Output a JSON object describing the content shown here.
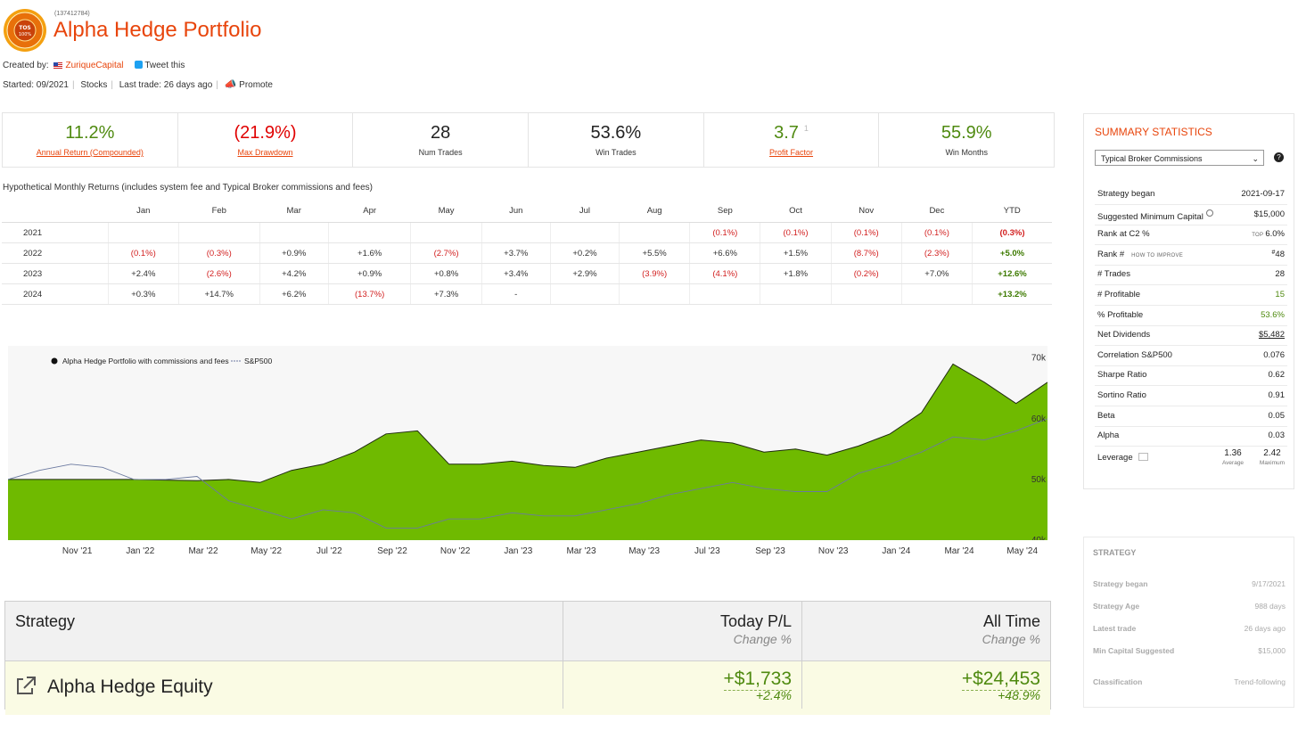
{
  "header": {
    "system_id": "(137412784)",
    "title": "Alpha Hedge Portfolio",
    "badge_text": "TOS 100%",
    "created_by_label": "Created by:",
    "creator": "ZuriqueCapital",
    "tweet": "Tweet this",
    "started": "Started: 09/2021",
    "asset": "Stocks",
    "last_trade": "Last trade: 26 days ago",
    "promote": "Promote"
  },
  "stats": [
    {
      "value": "11.2%",
      "label": "Annual Return (Compounded)"
    },
    {
      "value": "(21.9%)",
      "label": "Max Drawdown"
    },
    {
      "value": "28",
      "label": "Num Trades"
    },
    {
      "value": "53.6%",
      "label": "Win Trades"
    },
    {
      "value": "3.7",
      "superscript": "1",
      "label": "Profit Factor"
    },
    {
      "value": "55.9%",
      "label": "Win Months"
    }
  ],
  "monthly_returns": {
    "caption": "Hypothetical Monthly Returns (includes system fee and Typical Broker commissions and fees)",
    "columns": [
      "",
      "Jan",
      "Feb",
      "Mar",
      "Apr",
      "May",
      "Jun",
      "Jul",
      "Aug",
      "Sep",
      "Oct",
      "Nov",
      "Dec",
      "YTD"
    ],
    "rows": [
      [
        "2021",
        "",
        "",
        "",
        "",
        "",
        "",
        "",
        "",
        "(0.1%)",
        "(0.1%)",
        "(0.1%)",
        "(0.1%)",
        "(0.3%)"
      ],
      [
        "2022",
        "(0.1%)",
        "(0.3%)",
        "+0.9%",
        "+1.6%",
        "(2.7%)",
        "+3.7%",
        "+0.2%",
        "+5.5%",
        "+6.6%",
        "+1.5%",
        "(8.7%)",
        "(2.3%)",
        "+5.0%"
      ],
      [
        "2023",
        "+2.4%",
        "(2.6%)",
        "+4.2%",
        "+0.9%",
        "+0.8%",
        "+3.4%",
        "+2.9%",
        "(3.9%)",
        "(4.1%)",
        "+1.8%",
        "(0.2%)",
        "+7.0%",
        "+12.6%"
      ],
      [
        "2024",
        "+0.3%",
        "+14.7%",
        "+6.2%",
        "(13.7%)",
        "+7.3%",
        "-",
        "",
        "",
        "",
        "",
        "",
        "",
        "+13.2%"
      ]
    ]
  },
  "chart_data": {
    "type": "area",
    "legend": [
      {
        "name": "Alpha Hedge Portfolio with commissions and fees"
      },
      {
        "name": "S&P500"
      }
    ],
    "legend_position": "top-left",
    "x_ticks": [
      "Nov '21",
      "Jan '22",
      "Mar '22",
      "May '22",
      "Jul '22",
      "Sep '22",
      "Nov '22",
      "Jan '23",
      "Mar '23",
      "May '23",
      "Jul '23",
      "Sep '23",
      "Nov '23",
      "Jan '24",
      "Mar '24",
      "May '24"
    ],
    "y_ticks": [
      "70k",
      "60k",
      "50k",
      "40k"
    ],
    "ylim": [
      40000,
      72000
    ],
    "colors": {
      "portfolio": "#6fba00",
      "sp500": "#6c7aa0"
    },
    "series": [
      {
        "name": "Alpha Hedge Portfolio with commissions and fees",
        "x": [
          "2021-09",
          "2021-10",
          "2021-11",
          "2021-12",
          "2022-01",
          "2022-02",
          "2022-03",
          "2022-04",
          "2022-05",
          "2022-06",
          "2022-07",
          "2022-08",
          "2022-09",
          "2022-10",
          "2022-11",
          "2022-12",
          "2023-01",
          "2023-02",
          "2023-03",
          "2023-04",
          "2023-05",
          "2023-06",
          "2023-07",
          "2023-08",
          "2023-09",
          "2023-10",
          "2023-11",
          "2023-12",
          "2024-01",
          "2024-02",
          "2024-03",
          "2024-04",
          "2024-05",
          "2024-06"
        ],
        "values": [
          50000,
          50000,
          50000,
          50000,
          50000,
          49900,
          49800,
          50000,
          49500,
          51500,
          52500,
          54500,
          57500,
          58000,
          52500,
          52500,
          53000,
          52300,
          52000,
          53500,
          54500,
          55500,
          56500,
          56000,
          54500,
          55000,
          54000,
          55500,
          57500,
          61000,
          69000,
          66000,
          62500,
          66000
        ]
      },
      {
        "name": "S&P500",
        "x": [
          "2021-09",
          "2021-10",
          "2021-11",
          "2021-12",
          "2022-01",
          "2022-02",
          "2022-03",
          "2022-04",
          "2022-05",
          "2022-06",
          "2022-07",
          "2022-08",
          "2022-09",
          "2022-10",
          "2022-11",
          "2022-12",
          "2023-01",
          "2023-02",
          "2023-03",
          "2023-04",
          "2023-05",
          "2023-06",
          "2023-07",
          "2023-08",
          "2023-09",
          "2023-10",
          "2023-11",
          "2023-12",
          "2024-01",
          "2024-02",
          "2024-03",
          "2024-04",
          "2024-05",
          "2024-06"
        ],
        "values": [
          50000,
          51500,
          52500,
          52000,
          50000,
          50000,
          50500,
          46500,
          45000,
          43500,
          45000,
          44500,
          42000,
          42000,
          43500,
          43500,
          44500,
          44000,
          44000,
          45000,
          46000,
          47500,
          48500,
          49500,
          48500,
          48000,
          48000,
          51000,
          52500,
          54500,
          57000,
          56500,
          58000,
          60000
        ]
      }
    ]
  },
  "strategy_table": {
    "headers": {
      "strategy": "Strategy",
      "today": "Today P/L",
      "today_sub": "Change %",
      "alltime": "All Time",
      "alltime_sub": "Change %"
    },
    "row": {
      "name": "Alpha Hedge Equity",
      "today": "+$1,733",
      "today_pct": "+2.4%",
      "alltime": "+$24,453",
      "alltime_pct": "+48.9%"
    }
  },
  "summary": {
    "title": "SUMMARY STATISTICS",
    "select": "Typical Broker Commissions",
    "rows": [
      {
        "k": "Strategy began",
        "v": "2021-09-17"
      },
      {
        "k": "Suggested Minimum Capital",
        "v": "$15,000"
      },
      {
        "k": "Rank at C2 %",
        "prefix": "TOP",
        "v": "6.0%"
      },
      {
        "k": "Rank #",
        "note": "HOW TO IMPROVE",
        "prefix": "#",
        "v": "48"
      },
      {
        "k": "# Trades",
        "v": "28"
      },
      {
        "k": "# Profitable",
        "v": "15"
      },
      {
        "k": "% Profitable",
        "v": "53.6%"
      },
      {
        "k": "Net Dividends",
        "v": "$5,482"
      },
      {
        "k": "Correlation S&P500",
        "v": "0.076"
      },
      {
        "k": "Sharpe Ratio",
        "v": "0.62"
      },
      {
        "k": "Sortino Ratio",
        "v": "0.91"
      },
      {
        "k": "Beta",
        "v": "0.05"
      },
      {
        "k": "Alpha",
        "v": "0.03"
      }
    ],
    "leverage": {
      "k": "Leverage",
      "avg": "1.36",
      "avg_label": "Average",
      "max": "2.42",
      "max_label": "Maximum"
    }
  },
  "strategy_panel": {
    "title": "STRATEGY",
    "rows": [
      {
        "k": "Strategy began",
        "v": "9/17/2021"
      },
      {
        "k": "Strategy Age",
        "v": "988 days"
      },
      {
        "k": "Latest trade",
        "v": "26 days ago"
      },
      {
        "k": "Min Capital Suggested",
        "v": "$15,000"
      },
      {
        "k": "Classification",
        "v": "Trend-following"
      }
    ]
  }
}
